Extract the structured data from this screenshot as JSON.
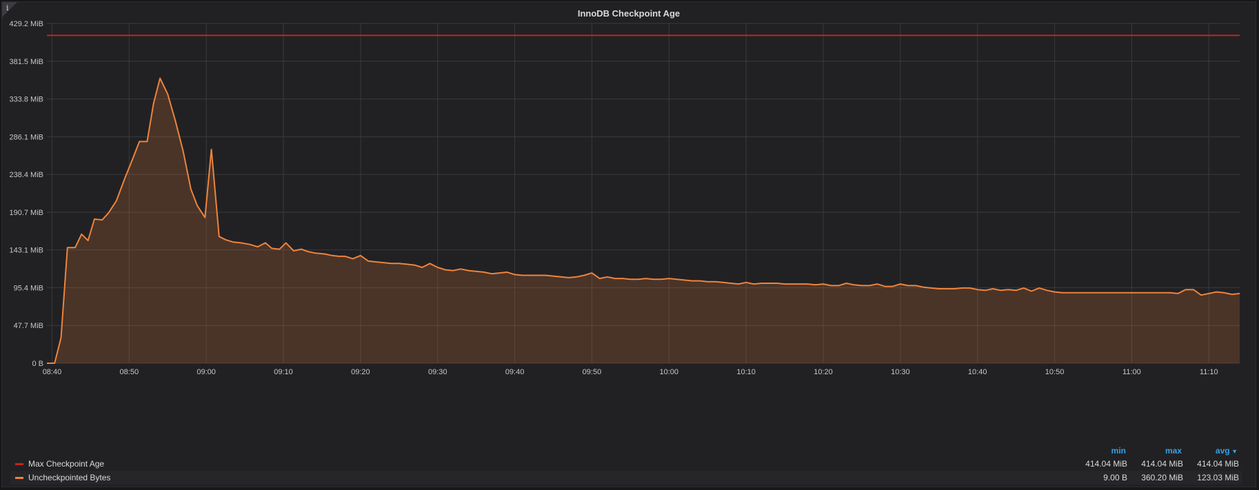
{
  "panel": {
    "title": "InnoDB Checkpoint Age",
    "info_glyph": "i"
  },
  "chart_data": {
    "type": "area",
    "title": "InnoDB Checkpoint Age",
    "x_unit": "time",
    "x_range": [
      "08:39:20",
      "11:14:00"
    ],
    "y_range": [
      0,
      429.2
    ],
    "y_unit": "MiB",
    "y_ticks": [
      {
        "value": 0,
        "label": "0 B"
      },
      {
        "value": 47.7,
        "label": "47.7 MiB"
      },
      {
        "value": 95.4,
        "label": "95.4 MiB"
      },
      {
        "value": 143.1,
        "label": "143.1 MiB"
      },
      {
        "value": 190.7,
        "label": "190.7 MiB"
      },
      {
        "value": 238.4,
        "label": "238.4 MiB"
      },
      {
        "value": 286.1,
        "label": "286.1 MiB"
      },
      {
        "value": 333.8,
        "label": "333.8 MiB"
      },
      {
        "value": 381.5,
        "label": "381.5 MiB"
      },
      {
        "value": 429.2,
        "label": "429.2 MiB"
      }
    ],
    "x_ticks": [
      "08:40",
      "08:50",
      "09:00",
      "09:10",
      "09:20",
      "09:30",
      "09:40",
      "09:50",
      "10:00",
      "10:10",
      "10:20",
      "10:30",
      "10:40",
      "10:50",
      "11:00",
      "11:10"
    ],
    "grid": true,
    "legend": "bottom-table",
    "series": [
      {
        "name": "Max Checkpoint Age",
        "color": "#c4261b",
        "fill": false,
        "points": [
          [
            "08:39:20",
            414.04
          ],
          [
            "11:14:00",
            414.04
          ]
        ],
        "min": "414.04 MiB",
        "max": "414.04 MiB",
        "avg": "414.04 MiB"
      },
      {
        "name": "Uncheckpointed Bytes",
        "color": "#ef843c",
        "fill": true,
        "points": [
          [
            "08:39:20",
            0
          ],
          [
            "08:40:20",
            0
          ],
          [
            "08:41:10",
            32
          ],
          [
            "08:42:00",
            146
          ],
          [
            "08:43:00",
            146
          ],
          [
            "08:43:50",
            163
          ],
          [
            "08:44:40",
            155
          ],
          [
            "08:45:30",
            182
          ],
          [
            "08:46:30",
            181
          ],
          [
            "08:47:20",
            190
          ],
          [
            "08:48:20",
            205
          ],
          [
            "08:49:30",
            235
          ],
          [
            "08:50:20",
            255
          ],
          [
            "08:51:20",
            280
          ],
          [
            "08:52:20",
            280
          ],
          [
            "08:53:10",
            328
          ],
          [
            "08:54:00",
            360
          ],
          [
            "08:55:00",
            340
          ],
          [
            "08:56:00",
            306
          ],
          [
            "08:57:00",
            268
          ],
          [
            "08:58:00",
            220
          ],
          [
            "08:58:50",
            199
          ],
          [
            "08:59:50",
            184
          ],
          [
            "09:00:40",
            270
          ],
          [
            "09:01:40",
            160
          ],
          [
            "09:02:30",
            156
          ],
          [
            "09:03:30",
            153
          ],
          [
            "09:04:30",
            152
          ],
          [
            "09:05:40",
            150
          ],
          [
            "09:06:40",
            147
          ],
          [
            "09:07:40",
            152
          ],
          [
            "09:08:30",
            145
          ],
          [
            "09:09:30",
            144
          ],
          [
            "09:10:20",
            152
          ],
          [
            "09:11:20",
            142
          ],
          [
            "09:12:20",
            144
          ],
          [
            "09:13:10",
            141
          ],
          [
            "09:14:10",
            139
          ],
          [
            "09:15:20",
            138
          ],
          [
            "09:16:20",
            136
          ],
          [
            "09:17:10",
            135
          ],
          [
            "09:18:00",
            135
          ],
          [
            "09:19:00",
            132
          ],
          [
            "09:20:00",
            136
          ],
          [
            "09:21:00",
            129
          ],
          [
            "09:22:00",
            128
          ],
          [
            "09:23:00",
            127
          ],
          [
            "09:24:00",
            126
          ],
          [
            "09:25:00",
            126
          ],
          [
            "09:26:00",
            125
          ],
          [
            "09:27:00",
            124
          ],
          [
            "09:28:00",
            121
          ],
          [
            "09:29:00",
            126
          ],
          [
            "09:30:00",
            121
          ],
          [
            "09:31:00",
            118
          ],
          [
            "09:32:00",
            117
          ],
          [
            "09:33:00",
            119
          ],
          [
            "09:34:00",
            117
          ],
          [
            "09:35:00",
            116
          ],
          [
            "09:36:00",
            115
          ],
          [
            "09:37:00",
            113
          ],
          [
            "09:38:00",
            114
          ],
          [
            "09:39:00",
            115
          ],
          [
            "09:40:00",
            112
          ],
          [
            "09:41:00",
            111
          ],
          [
            "09:42:00",
            111
          ],
          [
            "09:43:00",
            111
          ],
          [
            "09:44:00",
            111
          ],
          [
            "09:45:00",
            110
          ],
          [
            "09:46:00",
            109
          ],
          [
            "09:47:00",
            108
          ],
          [
            "09:48:00",
            109
          ],
          [
            "09:49:00",
            111
          ],
          [
            "09:50:00",
            114
          ],
          [
            "09:51:00",
            107
          ],
          [
            "09:52:00",
            109
          ],
          [
            "09:53:00",
            107
          ],
          [
            "09:54:00",
            107
          ],
          [
            "09:55:00",
            106
          ],
          [
            "09:56:00",
            106
          ],
          [
            "09:57:00",
            107
          ],
          [
            "09:58:00",
            106
          ],
          [
            "09:59:00",
            106
          ],
          [
            "10:00:00",
            107
          ],
          [
            "10:01:00",
            106
          ],
          [
            "10:02:00",
            105
          ],
          [
            "10:03:00",
            104
          ],
          [
            "10:04:00",
            104
          ],
          [
            "10:05:00",
            103
          ],
          [
            "10:06:00",
            103
          ],
          [
            "10:07:00",
            102
          ],
          [
            "10:08:00",
            101
          ],
          [
            "10:09:00",
            100
          ],
          [
            "10:10:00",
            102
          ],
          [
            "10:11:00",
            100
          ],
          [
            "10:12:00",
            101
          ],
          [
            "10:13:00",
            101
          ],
          [
            "10:14:00",
            101
          ],
          [
            "10:15:00",
            100
          ],
          [
            "10:16:00",
            100
          ],
          [
            "10:17:00",
            100
          ],
          [
            "10:18:00",
            100
          ],
          [
            "10:19:00",
            99
          ],
          [
            "10:20:00",
            100
          ],
          [
            "10:21:00",
            98
          ],
          [
            "10:22:00",
            98
          ],
          [
            "10:23:00",
            101
          ],
          [
            "10:24:00",
            99
          ],
          [
            "10:25:00",
            98
          ],
          [
            "10:26:00",
            98
          ],
          [
            "10:27:00",
            100
          ],
          [
            "10:28:00",
            97
          ],
          [
            "10:29:00",
            97
          ],
          [
            "10:30:00",
            100
          ],
          [
            "10:31:00",
            98
          ],
          [
            "10:32:00",
            98
          ],
          [
            "10:33:00",
            96
          ],
          [
            "10:34:00",
            95
          ],
          [
            "10:35:00",
            94
          ],
          [
            "10:36:00",
            94
          ],
          [
            "10:37:00",
            94
          ],
          [
            "10:38:00",
            95
          ],
          [
            "10:39:00",
            95
          ],
          [
            "10:40:00",
            93
          ],
          [
            "10:41:00",
            92
          ],
          [
            "10:42:00",
            94
          ],
          [
            "10:43:00",
            92
          ],
          [
            "10:44:00",
            93
          ],
          [
            "10:45:00",
            92
          ],
          [
            "10:46:00",
            95
          ],
          [
            "10:47:00",
            91
          ],
          [
            "10:48:00",
            95
          ],
          [
            "10:49:00",
            92
          ],
          [
            "10:50:00",
            90
          ],
          [
            "10:51:00",
            89
          ],
          [
            "10:52:00",
            89
          ],
          [
            "10:53:00",
            89
          ],
          [
            "10:54:00",
            89
          ],
          [
            "10:55:00",
            89
          ],
          [
            "10:56:00",
            89
          ],
          [
            "10:57:00",
            89
          ],
          [
            "10:58:00",
            89
          ],
          [
            "10:59:00",
            89
          ],
          [
            "11:00:00",
            89
          ],
          [
            "11:01:00",
            89
          ],
          [
            "11:02:00",
            89
          ],
          [
            "11:03:00",
            89
          ],
          [
            "11:04:00",
            89
          ],
          [
            "11:05:00",
            89
          ],
          [
            "11:06:00",
            88
          ],
          [
            "11:07:00",
            93
          ],
          [
            "11:08:00",
            93
          ],
          [
            "11:09:00",
            86
          ],
          [
            "11:10:00",
            88
          ],
          [
            "11:11:00",
            90
          ],
          [
            "11:12:00",
            89
          ],
          [
            "11:13:00",
            87
          ],
          [
            "11:14:00",
            88
          ]
        ],
        "min": "9.00 B",
        "max": "360.20 MiB",
        "avg": "123.03 MiB"
      }
    ]
  },
  "legend_columns": {
    "min": "min",
    "max": "max",
    "avg": "avg"
  }
}
